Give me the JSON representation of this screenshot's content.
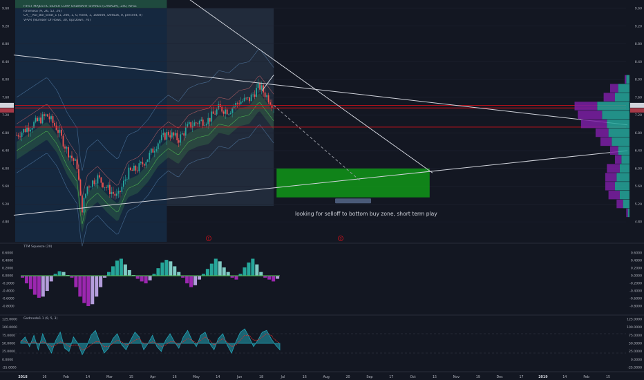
{
  "legend": {
    "title": "FIRST MAJESTIC SILVER CORP ORDINARY SHARES (CANADA), 240, NYSE",
    "lines": [
      "Ichimoku (9, 26, 52, 26)",
      "CA_-_RSI_Bol_Strat_1 (1, 200, 1, 0, fixed, 1, 100000, Default, 0, percent, 0)",
      "VPVR (Number Of Rows, 30, Up/Down, 70)"
    ]
  },
  "price_tag": {
    "left": "7.42",
    "left2": "00:13",
    "right": "7.42",
    "right2": "03:12:55"
  },
  "measure_label": "-0.89 (-15.08%) -16x",
  "annotation_text": "looking for selloff to bottom buy zone, short term play",
  "event_markers": [
    "E",
    "D"
  ],
  "x_axis_labels": [
    "2018",
    "16",
    "Feb",
    "14",
    "Mar",
    "15",
    "Apr",
    "16",
    "May",
    "14",
    "Jun",
    "18",
    "Jul",
    "16",
    "Aug",
    "20",
    "Sep",
    "17",
    "Oct",
    "15",
    "Nov",
    "19",
    "Dec",
    "17",
    "2019",
    "14",
    "Feb",
    "15"
  ],
  "panels": {
    "squeeze_title": "TTM Squeeze (20)",
    "godmode_title": "Godmode1.1 (9, 5, 3)"
  },
  "colors": {
    "background": "#131722",
    "grid": "#1e2230",
    "candle_up": "#26a69a",
    "candle_down": "#ef5350",
    "buy_zone": "#109618",
    "trendline": "#d1d4dc",
    "support_red": "#d0101a",
    "squeeze_up": "#26a69a",
    "squeeze_down": "#9c27b0",
    "squeeze_dots": "#4caf50",
    "godmode_line": "#22a3b5",
    "godmode_signal": "#d32f2f",
    "vp_up": "#26a69a",
    "vp_down": "#7b1fa2",
    "vp_mid": "#1b8a3a"
  },
  "chart_data": [
    {
      "type": "candlestick",
      "title": "FIRST MAJESTIC SILVER CORP ORDINARY SHARES (CANADA), 240, NYSE",
      "ylim": [
        4.6,
        9.6
      ],
      "y_ticks": [
        "9.60",
        "9.20",
        "8.80",
        "8.40",
        "8.00",
        "7.60",
        "7.20",
        "6.80",
        "6.40",
        "6.00",
        "5.60",
        "5.20",
        "4.80"
      ],
      "y_ticks_right": [
        "9.60",
        "9.20",
        "8.80",
        "8.40",
        "8.00",
        "7.60",
        "7.20",
        "6.80",
        "6.40",
        "6.00",
        "5.60",
        "5.20",
        "4.80"
      ],
      "last_price": 7.42,
      "x_domain": [
        "2018-01-01",
        "2019-02-28"
      ],
      "closes": [
        {
          "date": "2018-01-02",
          "close": 6.75
        },
        {
          "date": "2018-01-09",
          "close": 6.9
        },
        {
          "date": "2018-01-16",
          "close": 7.05
        },
        {
          "date": "2018-01-23",
          "close": 7.2
        },
        {
          "date": "2018-01-30",
          "close": 6.9
        },
        {
          "date": "2018-02-06",
          "close": 6.4
        },
        {
          "date": "2018-02-13",
          "close": 6.05
        },
        {
          "date": "2018-02-16",
          "close": 5.05
        },
        {
          "date": "2018-02-20",
          "close": 5.6
        },
        {
          "date": "2018-02-27",
          "close": 5.8
        },
        {
          "date": "2018-03-06",
          "close": 5.55
        },
        {
          "date": "2018-03-13",
          "close": 5.35
        },
        {
          "date": "2018-03-20",
          "close": 5.9
        },
        {
          "date": "2018-03-27",
          "close": 6.0
        },
        {
          "date": "2018-04-03",
          "close": 6.25
        },
        {
          "date": "2018-04-10",
          "close": 6.6
        },
        {
          "date": "2018-04-17",
          "close": 6.8
        },
        {
          "date": "2018-04-24",
          "close": 6.65
        },
        {
          "date": "2018-05-01",
          "close": 6.95
        },
        {
          "date": "2018-05-08",
          "close": 7.05
        },
        {
          "date": "2018-05-15",
          "close": 7.1
        },
        {
          "date": "2018-05-22",
          "close": 7.35
        },
        {
          "date": "2018-05-29",
          "close": 7.3
        },
        {
          "date": "2018-06-05",
          "close": 7.5
        },
        {
          "date": "2018-06-12",
          "close": 7.55
        },
        {
          "date": "2018-06-19",
          "close": 7.85
        },
        {
          "date": "2018-06-26",
          "close": 7.55
        },
        {
          "date": "2018-06-29",
          "close": 7.42
        }
      ],
      "horizontal_lines": [
        7.42,
        7.36,
        6.93
      ],
      "buy_zone": {
        "from": "2018-07-01",
        "to": "2018-10-15",
        "top": 6.0,
        "bottom": 5.35
      },
      "projection": {
        "from": {
          "date": "2018-06-29",
          "price": 7.42
        },
        "to": {
          "date": "2018-08-28",
          "price": 5.72
        }
      },
      "trendlines": [
        {
          "from": {
            "date": "2017-12-31",
            "price": 8.55
          },
          "to": {
            "date": "2019-03-01",
            "price": 6.98
          }
        },
        {
          "from": {
            "date": "2017-12-31",
            "price": 4.95
          },
          "to": {
            "date": "2019-03-01",
            "price": 6.4
          }
        },
        {
          "from": {
            "date": "2018-04-10",
            "price": 10.3
          },
          "to": {
            "date": "2018-10-17",
            "price": 5.9
          }
        },
        {
          "from": {
            "date": "2018-06-21",
            "price": 7.75
          },
          "to": {
            "date": "2018-06-29",
            "price": 8.1
          }
        }
      ],
      "volume_profile": {
        "rows": [
          {
            "price": 8.0,
            "up": 0.1,
            "down": 0.05
          },
          {
            "price": 7.8,
            "up": 0.35,
            "down": 0.25
          },
          {
            "price": 7.6,
            "up": 0.45,
            "down": 0.35
          },
          {
            "price": 7.4,
            "up": 1.0,
            "down": 0.7
          },
          {
            "price": 7.2,
            "up": 0.85,
            "down": 0.75
          },
          {
            "price": 7.0,
            "up": 0.7,
            "down": 0.8
          },
          {
            "price": 6.8,
            "up": 0.65,
            "down": 0.4
          },
          {
            "price": 6.6,
            "up": 0.55,
            "down": 0.35
          },
          {
            "price": 6.4,
            "up": 0.35,
            "down": 0.25
          },
          {
            "price": 6.2,
            "up": 0.25,
            "down": 0.2
          },
          {
            "price": 6.0,
            "up": 0.3,
            "down": 0.4
          },
          {
            "price": 5.8,
            "up": 0.4,
            "down": 0.35
          },
          {
            "price": 5.6,
            "up": 0.45,
            "down": 0.3
          },
          {
            "price": 5.4,
            "up": 0.3,
            "down": 0.35
          },
          {
            "price": 5.2,
            "up": 0.2,
            "down": 0.2
          },
          {
            "price": 5.0,
            "up": 0.05,
            "down": 0.05
          }
        ]
      }
    },
    {
      "type": "bar",
      "title": "TTM Squeeze (20)",
      "ylim": [
        -1.0,
        0.75
      ],
      "y_ticks": [
        "0.6000",
        "0.4000",
        "0.2000",
        "0.0000",
        "-0.2000",
        "-0.4000",
        "-0.6000",
        "-0.8000"
      ],
      "values": [
        -0.05,
        -0.2,
        -0.35,
        -0.5,
        -0.58,
        -0.55,
        -0.4,
        -0.15,
        0.05,
        0.12,
        0.1,
        0.02,
        -0.05,
        -0.3,
        -0.55,
        -0.72,
        -0.8,
        -0.75,
        -0.55,
        -0.3,
        -0.05,
        0.1,
        0.25,
        0.4,
        0.45,
        0.3,
        0.15,
        0.02,
        -0.08,
        -0.15,
        -0.2,
        -0.12,
        0.05,
        0.2,
        0.35,
        0.42,
        0.38,
        0.25,
        0.1,
        -0.05,
        -0.2,
        -0.3,
        -0.25,
        -0.1,
        0.05,
        0.18,
        0.32,
        0.45,
        0.38,
        0.22,
        0.1,
        -0.05,
        -0.1,
        0.05,
        0.22,
        0.35,
        0.45,
        0.3,
        0.1,
        -0.05,
        -0.1,
        -0.15,
        -0.08
      ]
    },
    {
      "type": "line",
      "title": "Godmode1.1 (9, 5, 3)",
      "ylim": [
        -25,
        125
      ],
      "y_ticks": [
        "125.0000",
        "100.0000",
        "75.0000",
        "50.0000",
        "25.0000",
        "0.0000",
        "-25.0000"
      ],
      "series": [
        {
          "values": [
            55,
            70,
            40,
            75,
            30,
            80,
            45,
            20,
            60,
            85,
            35,
            25,
            70,
            50,
            15,
            40,
            75,
            90,
            55,
            20,
            35,
            65,
            80,
            45,
            30,
            60,
            85,
            70,
            30,
            50,
            75,
            40,
            25,
            60,
            80,
            55,
            35,
            70,
            90,
            60,
            40,
            75,
            85,
            50,
            30,
            65,
            80,
            45,
            20,
            55,
            85,
            95,
            70,
            40,
            60,
            85,
            90,
            65,
            45,
            30
          ]
        },
        {
          "values": [
            60,
            55,
            50,
            55,
            50,
            55,
            50,
            40,
            45,
            55,
            50,
            40,
            45,
            45,
            30,
            35,
            45,
            55,
            55,
            40,
            40,
            50,
            60,
            55,
            45,
            50,
            60,
            65,
            50,
            50,
            55,
            50,
            40,
            45,
            55,
            55,
            45,
            55,
            65,
            60,
            50,
            60,
            70,
            60,
            45,
            55,
            65,
            55,
            40,
            45,
            60,
            75,
            75,
            60,
            60,
            70,
            80,
            75,
            60,
            50
          ]
        }
      ]
    }
  ]
}
